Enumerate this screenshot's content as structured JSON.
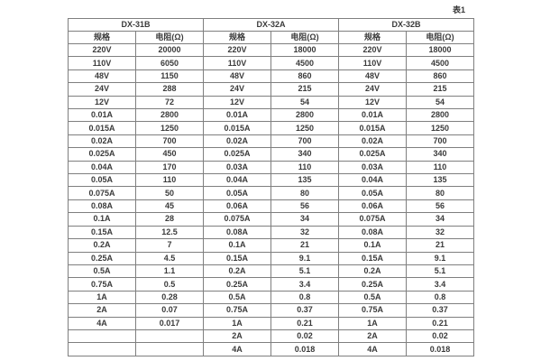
{
  "page": {
    "caption": "表1"
  },
  "colors": {
    "background": "#ffffff",
    "border": "#7f7f7f",
    "text": "#3a3a3a"
  },
  "table": {
    "groups": [
      {
        "name": "DX-31B",
        "spec_header": "规格",
        "resistance_header": "电阻(Ω)"
      },
      {
        "name": "DX-32A",
        "spec_header": "规格",
        "resistance_header": "电阻(Ω)"
      },
      {
        "name": "DX-32B",
        "spec_header": "规格",
        "resistance_header": "电阻(Ω)"
      }
    ],
    "rows": [
      [
        "220V",
        "20000",
        "220V",
        "18000",
        "220V",
        "18000"
      ],
      [
        "110V",
        "6050",
        "110V",
        "4500",
        "110V",
        "4500"
      ],
      [
        "48V",
        "1150",
        "48V",
        "860",
        "48V",
        "860"
      ],
      [
        "24V",
        "288",
        "24V",
        "215",
        "24V",
        "215"
      ],
      [
        "12V",
        "72",
        "12V",
        "54",
        "12V",
        "54"
      ],
      [
        "0.01A",
        "2800",
        "0.01A",
        "2800",
        "0.01A",
        "2800"
      ],
      [
        "0.015A",
        "1250",
        "0.015A",
        "1250",
        "0.015A",
        "1250"
      ],
      [
        "0.02A",
        "700",
        "0.02A",
        "700",
        "0.02A",
        "700"
      ],
      [
        "0.025A",
        "450",
        "0.025A",
        "340",
        "0.025A",
        "340"
      ],
      [
        "0.04A",
        "170",
        "0.03A",
        "110",
        "0.03A",
        "110"
      ],
      [
        "0.05A",
        "110",
        "0.04A",
        "135",
        "0.04A",
        "135"
      ],
      [
        "0.075A",
        "50",
        "0.05A",
        "80",
        "0.05A",
        "80"
      ],
      [
        "0.08A",
        "45",
        "0.06A",
        "56",
        "0.06A",
        "56"
      ],
      [
        "0.1A",
        "28",
        "0.075A",
        "34",
        "0.075A",
        "34"
      ],
      [
        "0.15A",
        "12.5",
        "0.08A",
        "32",
        "0.08A",
        "32"
      ],
      [
        "0.2A",
        "7",
        "0.1A",
        "21",
        "0.1A",
        "21"
      ],
      [
        "0.25A",
        "4.5",
        "0.15A",
        "9.1",
        "0.15A",
        "9.1"
      ],
      [
        "0.5A",
        "1.1",
        "0.2A",
        "5.1",
        "0.2A",
        "5.1"
      ],
      [
        "0.75A",
        "0.5",
        "0.25A",
        "3.4",
        "0.25A",
        "3.4"
      ],
      [
        "1A",
        "0.28",
        "0.5A",
        "0.8",
        "0.5A",
        "0.8"
      ],
      [
        "2A",
        "0.07",
        "0.75A",
        "0.37",
        "0.75A",
        "0.37"
      ],
      [
        "4A",
        "0.017",
        "1A",
        "0.21",
        "1A",
        "0.21"
      ],
      [
        "",
        "",
        "2A",
        "0.02",
        "2A",
        "0.02"
      ],
      [
        "",
        "",
        "4A",
        "0.018",
        "4A",
        "0.018"
      ]
    ]
  }
}
